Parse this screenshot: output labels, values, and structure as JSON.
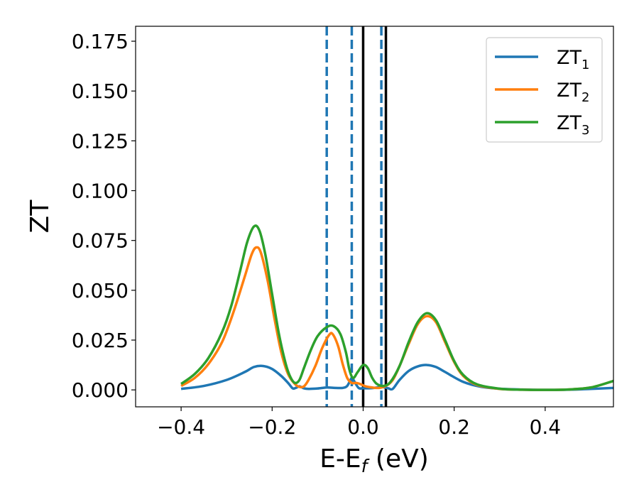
{
  "chart_data": {
    "type": "line",
    "title": "",
    "xlabel": "E-E",
    "xlabel_sub": "f",
    "xlabel_unit": " (eV)",
    "ylabel": "ZT",
    "xlim": [
      -0.5,
      0.55
    ],
    "ylim": [
      -0.0085,
      0.1825
    ],
    "xticks": [
      -0.4,
      -0.2,
      0.0,
      0.2,
      0.4
    ],
    "xtick_labels": [
      "−0.4",
      "−0.2",
      "0.0",
      "0.2",
      "0.4"
    ],
    "yticks": [
      0.0,
      0.025,
      0.05,
      0.075,
      0.1,
      0.125,
      0.15,
      0.175
    ],
    "ytick_labels": [
      "0.000",
      "0.025",
      "0.050",
      "0.075",
      "0.100",
      "0.125",
      "0.150",
      "0.175"
    ],
    "grid": false,
    "legend_position": "top-right",
    "series": [
      {
        "name": "ZT",
        "name_sub": "1",
        "color": "#1f77b4",
        "points": [
          [
            -0.4,
            0.0005
          ],
          [
            -0.35,
            0.002
          ],
          [
            -0.3,
            0.005
          ],
          [
            -0.26,
            0.009
          ],
          [
            -0.24,
            0.0115
          ],
          [
            -0.22,
            0.012
          ],
          [
            -0.2,
            0.0105
          ],
          [
            -0.18,
            0.007
          ],
          [
            -0.165,
            0.0035
          ],
          [
            -0.155,
            0.0008
          ],
          [
            -0.148,
            0.001
          ],
          [
            -0.14,
            0.0018
          ],
          [
            -0.13,
            0.0008
          ],
          [
            -0.12,
            0.0005
          ],
          [
            -0.1,
            0.0007
          ],
          [
            -0.08,
            0.0012
          ],
          [
            -0.06,
            0.001
          ],
          [
            -0.045,
            0.001
          ],
          [
            -0.035,
            0.002
          ],
          [
            -0.025,
            0.006
          ],
          [
            -0.02,
            0.0045
          ],
          [
            -0.01,
            0.001
          ],
          [
            0.0,
            0.0008
          ],
          [
            0.02,
            0.0009
          ],
          [
            0.04,
            0.0015
          ],
          [
            0.055,
            0.0008
          ],
          [
            0.065,
            0.0005
          ],
          [
            0.08,
            0.005
          ],
          [
            0.1,
            0.0095
          ],
          [
            0.12,
            0.0118
          ],
          [
            0.14,
            0.0125
          ],
          [
            0.16,
            0.0115
          ],
          [
            0.18,
            0.009
          ],
          [
            0.22,
            0.004
          ],
          [
            0.26,
            0.0015
          ],
          [
            0.3,
            0.0006
          ],
          [
            0.35,
            0.0002
          ],
          [
            0.4,
            0.0
          ],
          [
            0.45,
            0.0001
          ],
          [
            0.5,
            0.0005
          ],
          [
            0.55,
            0.001
          ]
        ]
      },
      {
        "name": "ZT",
        "name_sub": "2",
        "color": "#ff7f0e",
        "points": [
          [
            -0.4,
            0.002
          ],
          [
            -0.37,
            0.006
          ],
          [
            -0.34,
            0.013
          ],
          [
            -0.31,
            0.024
          ],
          [
            -0.285,
            0.039
          ],
          [
            -0.26,
            0.057
          ],
          [
            -0.245,
            0.068
          ],
          [
            -0.235,
            0.0715
          ],
          [
            -0.225,
            0.069
          ],
          [
            -0.21,
            0.055
          ],
          [
            -0.195,
            0.036
          ],
          [
            -0.18,
            0.019
          ],
          [
            -0.165,
            0.008
          ],
          [
            -0.15,
            0.003
          ],
          [
            -0.14,
            0.0015
          ],
          [
            -0.13,
            0.0018
          ],
          [
            -0.12,
            0.005
          ],
          [
            -0.105,
            0.012
          ],
          [
            -0.09,
            0.021
          ],
          [
            -0.075,
            0.0275
          ],
          [
            -0.067,
            0.028
          ],
          [
            -0.055,
            0.022
          ],
          [
            -0.045,
            0.013
          ],
          [
            -0.035,
            0.006
          ],
          [
            -0.025,
            0.0035
          ],
          [
            -0.015,
            0.0035
          ],
          [
            -0.005,
            0.0028
          ],
          [
            0.005,
            0.0018
          ],
          [
            0.02,
            0.0012
          ],
          [
            0.035,
            0.001
          ],
          [
            0.05,
            0.002
          ],
          [
            0.065,
            0.005
          ],
          [
            0.08,
            0.012
          ],
          [
            0.1,
            0.023
          ],
          [
            0.12,
            0.033
          ],
          [
            0.14,
            0.037
          ],
          [
            0.16,
            0.034
          ],
          [
            0.18,
            0.024
          ],
          [
            0.2,
            0.014
          ],
          [
            0.22,
            0.007
          ],
          [
            0.25,
            0.0025
          ],
          [
            0.3,
            0.0005
          ],
          [
            0.35,
            0.0001
          ],
          [
            0.4,
            0.0
          ],
          [
            0.45,
            0.0002
          ],
          [
            0.5,
            0.0012
          ],
          [
            0.55,
            0.0045
          ]
        ]
      },
      {
        "name": "ZT",
        "name_sub": "3",
        "color": "#2ca02c",
        "points": [
          [
            -0.4,
            0.003
          ],
          [
            -0.37,
            0.008
          ],
          [
            -0.34,
            0.016
          ],
          [
            -0.31,
            0.029
          ],
          [
            -0.29,
            0.042
          ],
          [
            -0.27,
            0.06
          ],
          [
            -0.255,
            0.074
          ],
          [
            -0.24,
            0.082
          ],
          [
            -0.228,
            0.08
          ],
          [
            -0.215,
            0.068
          ],
          [
            -0.2,
            0.048
          ],
          [
            -0.185,
            0.028
          ],
          [
            -0.17,
            0.013
          ],
          [
            -0.16,
            0.0065
          ],
          [
            -0.15,
            0.0035
          ],
          [
            -0.14,
            0.005
          ],
          [
            -0.13,
            0.011
          ],
          [
            -0.115,
            0.02
          ],
          [
            -0.1,
            0.027
          ],
          [
            -0.08,
            0.0315
          ],
          [
            -0.065,
            0.032
          ],
          [
            -0.05,
            0.028
          ],
          [
            -0.038,
            0.019
          ],
          [
            -0.03,
            0.01
          ],
          [
            -0.022,
            0.006
          ],
          [
            -0.012,
            0.009
          ],
          [
            0.0,
            0.0125
          ],
          [
            0.01,
            0.011
          ],
          [
            0.02,
            0.006
          ],
          [
            0.03,
            0.003
          ],
          [
            0.045,
            0.002
          ],
          [
            0.06,
            0.004
          ],
          [
            0.08,
            0.012
          ],
          [
            0.1,
            0.024
          ],
          [
            0.12,
            0.034
          ],
          [
            0.14,
            0.0385
          ],
          [
            0.16,
            0.035
          ],
          [
            0.18,
            0.025
          ],
          [
            0.2,
            0.0145
          ],
          [
            0.22,
            0.0075
          ],
          [
            0.25,
            0.0028
          ],
          [
            0.3,
            0.0006
          ],
          [
            0.35,
            0.0001
          ],
          [
            0.4,
            0.0
          ],
          [
            0.45,
            0.0002
          ],
          [
            0.5,
            0.0012
          ],
          [
            0.55,
            0.0045
          ]
        ]
      }
    ],
    "vertical_lines": [
      {
        "x": -0.08,
        "style": "dashed",
        "color": "#1f77b4"
      },
      {
        "x": -0.025,
        "style": "dashed",
        "color": "#1f77b4"
      },
      {
        "x": 0.04,
        "style": "dashed",
        "color": "#1f77b4"
      },
      {
        "x": 0.0,
        "style": "solid",
        "color": "#000000"
      },
      {
        "x": 0.05,
        "style": "solid",
        "color": "#000000"
      }
    ]
  }
}
